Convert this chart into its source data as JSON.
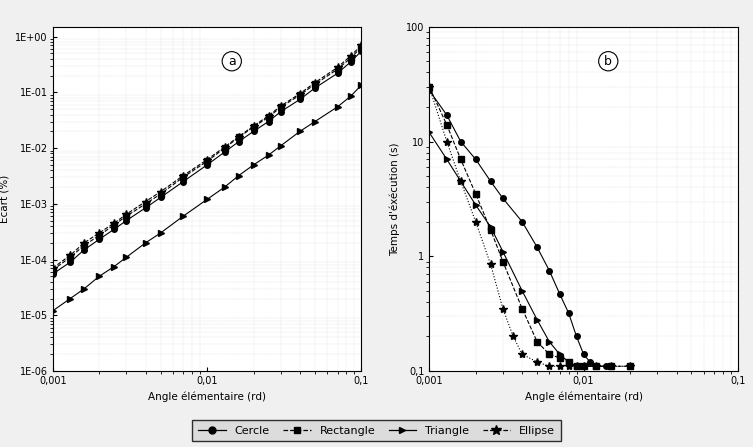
{
  "plot_a": {
    "xlabel": "Angle élémentaire (rd)",
    "ylabel": "Ecart (%)",
    "label": "a",
    "xlim": [
      0.001,
      0.1
    ],
    "ylim": [
      1e-06,
      1.5
    ],
    "cercle": {
      "x": [
        0.001,
        0.0013,
        0.0016,
        0.002,
        0.0025,
        0.003,
        0.004,
        0.005,
        0.007,
        0.01,
        0.013,
        0.016,
        0.02,
        0.025,
        0.03,
        0.04,
        0.05,
        0.07,
        0.085,
        0.1
      ],
      "y": [
        5.5e-05,
        9e-05,
        0.00015,
        0.00023,
        0.00035,
        0.0005,
        0.00085,
        0.0013,
        0.0025,
        0.005,
        0.0085,
        0.013,
        0.02,
        0.03,
        0.045,
        0.075,
        0.12,
        0.22,
        0.35,
        0.55
      ],
      "linestyle": "-",
      "marker": "o"
    },
    "rectangle": {
      "x": [
        0.001,
        0.0013,
        0.0016,
        0.002,
        0.0025,
        0.003,
        0.004,
        0.005,
        0.007,
        0.01,
        0.013,
        0.016,
        0.02,
        0.025,
        0.03,
        0.04,
        0.05,
        0.07,
        0.085,
        0.1
      ],
      "y": [
        6.5e-05,
        0.00011,
        0.00018,
        0.00027,
        0.00042,
        0.0006,
        0.001,
        0.0015,
        0.003,
        0.0058,
        0.01,
        0.0155,
        0.024,
        0.036,
        0.054,
        0.09,
        0.14,
        0.26,
        0.41,
        0.65
      ],
      "linestyle": "--",
      "marker": "s"
    },
    "triangle": {
      "x": [
        0.001,
        0.0013,
        0.0016,
        0.002,
        0.0025,
        0.003,
        0.004,
        0.005,
        0.007,
        0.01,
        0.013,
        0.016,
        0.02,
        0.025,
        0.03,
        0.04,
        0.05,
        0.07,
        0.085,
        0.1
      ],
      "y": [
        1.2e-05,
        2e-05,
        3e-05,
        5e-05,
        7.5e-05,
        0.00011,
        0.0002,
        0.0003,
        0.0006,
        0.0012,
        0.002,
        0.0032,
        0.005,
        0.0075,
        0.011,
        0.02,
        0.03,
        0.055,
        0.085,
        0.135
      ],
      "linestyle": "-",
      "marker": ">"
    },
    "ellipse": {
      "x": [
        0.001,
        0.0013,
        0.0016,
        0.002,
        0.0025,
        0.003,
        0.004,
        0.005,
        0.007,
        0.01,
        0.013,
        0.016,
        0.02,
        0.025,
        0.03,
        0.04,
        0.05,
        0.07,
        0.085,
        0.1
      ],
      "y": [
        7e-05,
        0.00012,
        0.0002,
        0.0003,
        0.00045,
        0.00065,
        0.0011,
        0.00165,
        0.0032,
        0.0062,
        0.0105,
        0.016,
        0.025,
        0.038,
        0.057,
        0.095,
        0.15,
        0.28,
        0.45,
        0.7
      ],
      "linestyle": "--",
      "marker": "*"
    }
  },
  "plot_b": {
    "xlabel": "Angle élémentaire (rd)",
    "ylabel": "Temps d'éxécution (s)",
    "label": "b",
    "xlim": [
      0.001,
      0.1
    ],
    "ylim": [
      0.1,
      100
    ],
    "cercle": {
      "x": [
        0.001,
        0.0013,
        0.0016,
        0.002,
        0.0025,
        0.003,
        0.004,
        0.005,
        0.006,
        0.007,
        0.008,
        0.009,
        0.01,
        0.011,
        0.012,
        0.014
      ],
      "y": [
        28,
        17,
        10,
        7,
        4.5,
        3.2,
        2.0,
        1.2,
        0.75,
        0.47,
        0.32,
        0.2,
        0.14,
        0.12,
        0.11,
        0.11
      ],
      "linestyle": "-",
      "marker": "o"
    },
    "rectangle": {
      "x": [
        0.001,
        0.0013,
        0.0016,
        0.002,
        0.0025,
        0.003,
        0.004,
        0.005,
        0.006,
        0.007,
        0.008,
        0.009,
        0.01,
        0.012,
        0.015,
        0.02
      ],
      "y": [
        30,
        14,
        7,
        3.5,
        1.7,
        0.9,
        0.35,
        0.18,
        0.14,
        0.13,
        0.12,
        0.11,
        0.11,
        0.11,
        0.11,
        0.11
      ],
      "linestyle": "--",
      "marker": "s"
    },
    "triangle": {
      "x": [
        0.001,
        0.0013,
        0.0016,
        0.002,
        0.0025,
        0.003,
        0.004,
        0.005,
        0.006,
        0.007,
        0.008,
        0.009,
        0.01,
        0.012
      ],
      "y": [
        12,
        7,
        4.5,
        2.8,
        1.8,
        1.1,
        0.5,
        0.28,
        0.18,
        0.14,
        0.12,
        0.11,
        0.11,
        0.11
      ],
      "linestyle": "-",
      "marker": ">"
    },
    "ellipse": {
      "x": [
        0.001,
        0.0013,
        0.0016,
        0.002,
        0.0025,
        0.003,
        0.0035,
        0.004,
        0.005,
        0.006,
        0.007,
        0.008,
        0.009,
        0.01,
        0.012,
        0.015,
        0.02
      ],
      "y": [
        30,
        10,
        4.5,
        2.0,
        0.85,
        0.35,
        0.2,
        0.14,
        0.12,
        0.11,
        0.11,
        0.11,
        0.11,
        0.11,
        0.11,
        0.11,
        0.11
      ],
      "linestyle": ":",
      "marker": "*"
    }
  },
  "legend": {
    "cercle_label": "Cercle",
    "rectangle_label": "Rectangle",
    "triangle_label": "Triangle",
    "ellipse_label": "Ellipse"
  }
}
